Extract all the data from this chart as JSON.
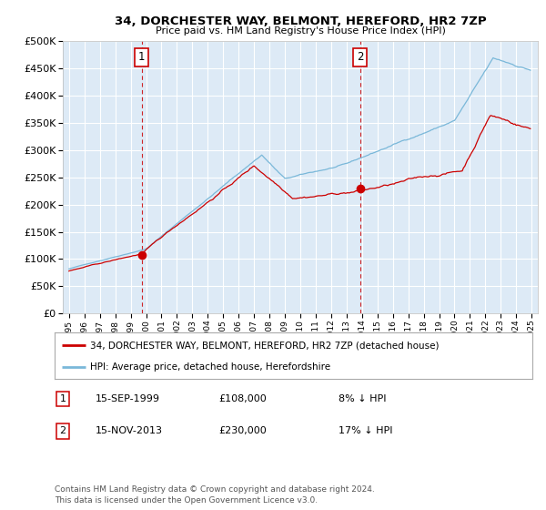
{
  "title1": "34, DORCHESTER WAY, BELMONT, HEREFORD, HR2 7ZP",
  "title2": "Price paid vs. HM Land Registry's House Price Index (HPI)",
  "legend_line1": "34, DORCHESTER WAY, BELMONT, HEREFORD, HR2 7ZP (detached house)",
  "legend_line2": "HPI: Average price, detached house, Herefordshire",
  "annotation1_date": "15-SEP-1999",
  "annotation1_price": "£108,000",
  "annotation1_hpi": "8% ↓ HPI",
  "annotation2_date": "15-NOV-2013",
  "annotation2_price": "£230,000",
  "annotation2_hpi": "17% ↓ HPI",
  "footnote": "Contains HM Land Registry data © Crown copyright and database right 2024.\nThis data is licensed under the Open Government Licence v3.0.",
  "hpi_color": "#7ab8d9",
  "price_color": "#cc0000",
  "bg_color": "#ddeaf6",
  "grid_color": "#ffffff",
  "ylim": [
    0,
    500000
  ],
  "sale1_year": 1999.71,
  "sale1_price": 108000,
  "sale2_year": 2013.87,
  "sale2_price": 230000
}
